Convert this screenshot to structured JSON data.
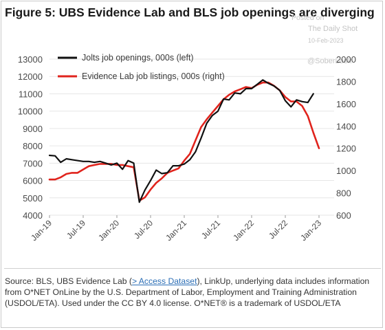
{
  "title": "Figure 5: UBS Evidence Lab and BLS job openings are diverging",
  "watermark": {
    "posted_on": "Posted on",
    "brand": "The Daily Shot",
    "date": "10-Feb-2023",
    "handle": "@SoberLook"
  },
  "source": {
    "prefix": "Source: BLS, UBS Evidence Lab (",
    "link_text": "> Access Dataset",
    "suffix": "), LinkUp, underlying data includes information from O*NET OnLine by the U.S. Department of Labor, Employment and Training Administration (USDOL/ETA). Used under the CC BY 4.0 license. O*NET® is a trademark of USDOL/ETA"
  },
  "colors": {
    "jolts": "#111111",
    "evidence": "#e0231c",
    "grid": "#e6e6e6"
  },
  "chart_data": {
    "type": "line",
    "x_tick_labels": [
      "Jan-19",
      "Jul-19",
      "Jan-20",
      "Jul-20",
      "Jan-21",
      "Jul-21",
      "Jan-22",
      "Jul-22",
      "Jan-23"
    ],
    "x_range": [
      "2019-01",
      "2023-01"
    ],
    "y_left": {
      "min": 4000,
      "max": 13000,
      "step": 1000
    },
    "y_right": {
      "min": 600,
      "max": 2000,
      "step": 200
    },
    "grid": "horizontal",
    "legend": "top-left",
    "series": [
      {
        "name": "Jolts job openings, 000s (left)",
        "axis": "left",
        "x": [
          "2019-01",
          "2019-02",
          "2019-03",
          "2019-04",
          "2019-05",
          "2019-06",
          "2019-07",
          "2019-08",
          "2019-09",
          "2019-10",
          "2019-11",
          "2019-12",
          "2020-01",
          "2020-02",
          "2020-03",
          "2020-04",
          "2020-05",
          "2020-06",
          "2020-07",
          "2020-08",
          "2020-09",
          "2020-10",
          "2020-11",
          "2020-12",
          "2021-01",
          "2021-02",
          "2021-03",
          "2021-04",
          "2021-05",
          "2021-06",
          "2021-07",
          "2021-08",
          "2021-09",
          "2021-10",
          "2021-11",
          "2021-12",
          "2022-01",
          "2022-02",
          "2022-03",
          "2022-04",
          "2022-05",
          "2022-06",
          "2022-07",
          "2022-08",
          "2022-09",
          "2022-10",
          "2022-11",
          "2022-12"
        ],
        "values": [
          7450,
          7420,
          7050,
          7250,
          7200,
          7150,
          7100,
          7100,
          7050,
          7100,
          7000,
          6900,
          7000,
          6650,
          7150,
          7000,
          4750,
          5450,
          6000,
          6600,
          6400,
          6450,
          6850,
          6850,
          6950,
          7200,
          7650,
          8450,
          9300,
          9750,
          10000,
          10700,
          10650,
          11050,
          11000,
          11300,
          11300,
          11550,
          11800,
          11600,
          11450,
          11200,
          10600,
          10250,
          10650,
          10550,
          10500,
          11000
        ]
      },
      {
        "name": "Evidence Lab job listings, 000s (right)",
        "axis": "right",
        "x": [
          "2019-01",
          "2019-02",
          "2019-03",
          "2019-04",
          "2019-05",
          "2019-06",
          "2019-07",
          "2019-08",
          "2019-09",
          "2019-10",
          "2019-11",
          "2019-12",
          "2020-01",
          "2020-02",
          "2020-03",
          "2020-04",
          "2020-05",
          "2020-06",
          "2020-07",
          "2020-08",
          "2020-09",
          "2020-10",
          "2020-11",
          "2020-12",
          "2021-01",
          "2021-02",
          "2021-03",
          "2021-04",
          "2021-05",
          "2021-06",
          "2021-07",
          "2021-08",
          "2021-09",
          "2021-10",
          "2021-11",
          "2021-12",
          "2022-01",
          "2022-02",
          "2022-03",
          "2022-04",
          "2022-05",
          "2022-06",
          "2022-07",
          "2022-08",
          "2022-09",
          "2022-10",
          "2022-11",
          "2022-12",
          "2023-01"
        ],
        "values": [
          920,
          920,
          940,
          970,
          980,
          980,
          1010,
          1040,
          1050,
          1060,
          1060,
          1060,
          1050,
          1050,
          1040,
          1030,
          730,
          760,
          830,
          890,
          930,
          980,
          1000,
          1020,
          1090,
          1150,
          1270,
          1390,
          1460,
          1520,
          1580,
          1640,
          1680,
          1710,
          1730,
          1750,
          1740,
          1770,
          1790,
          1790,
          1760,
          1720,
          1660,
          1620,
          1620,
          1580,
          1490,
          1340,
          1200
        ]
      }
    ]
  }
}
